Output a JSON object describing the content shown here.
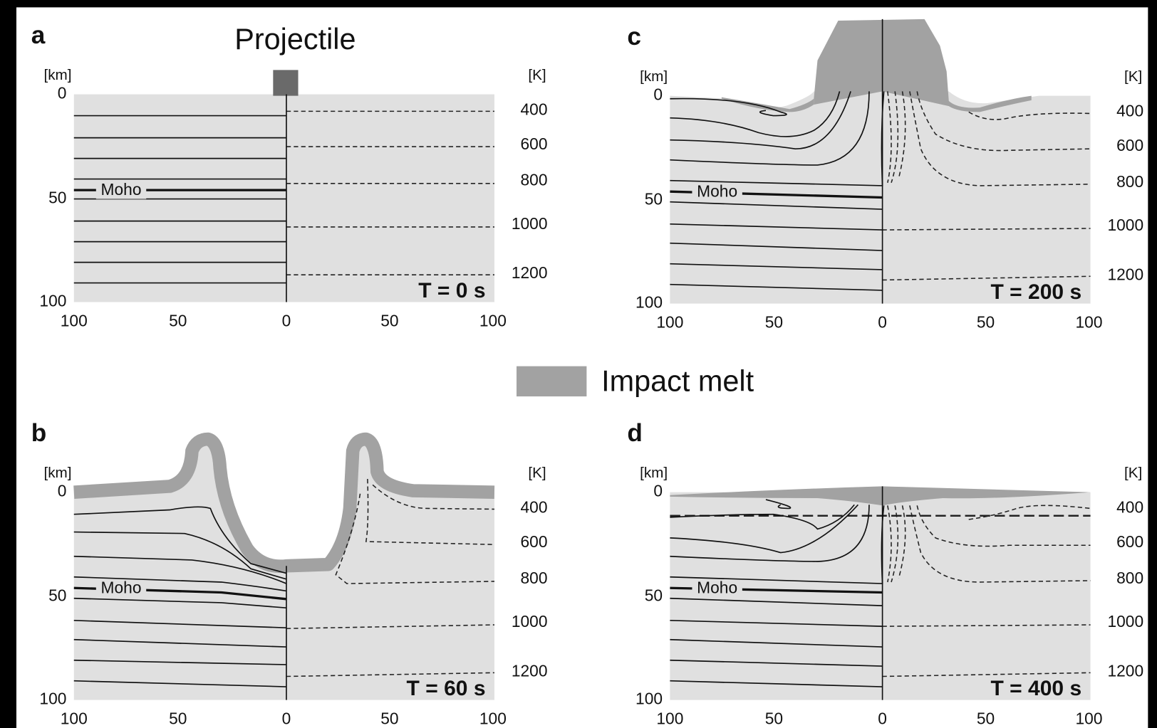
{
  "legend": {
    "label": "Impact melt"
  },
  "projectile": "Projectile",
  "panels": [
    {
      "letter": "a",
      "time": "T = 0 s",
      "depth_unit": "[km]",
      "temp_unit": "[K]",
      "depth_ticks": [
        "0",
        "50",
        "100"
      ],
      "distance_ticks": [
        "100",
        "50",
        "0",
        "50",
        "100"
      ],
      "temperature_ticks": [
        "400",
        "600",
        "800",
        "1000",
        "1200"
      ],
      "moho": "Moho"
    },
    {
      "letter": "b",
      "time": "T = 60 s",
      "depth_unit": "[km]",
      "temp_unit": "[K]",
      "depth_ticks": [
        "0",
        "50",
        "100"
      ],
      "distance_ticks": [
        "100",
        "50",
        "0",
        "50",
        "100"
      ],
      "temperature_ticks": [
        "400",
        "600",
        "800",
        "1000",
        "1200"
      ],
      "moho": "Moho"
    },
    {
      "letter": "c",
      "time": "T = 200 s",
      "depth_unit": "[km]",
      "temp_unit": "[K]",
      "depth_ticks": [
        "0",
        "50",
        "100"
      ],
      "distance_ticks": [
        "100",
        "50",
        "0",
        "50",
        "100"
      ],
      "temperature_ticks": [
        "400",
        "600",
        "800",
        "1000",
        "1200"
      ],
      "moho": "Moho"
    },
    {
      "letter": "d",
      "time": "T = 400 s",
      "depth_unit": "[km]",
      "temp_unit": "[K]",
      "depth_ticks": [
        "0",
        "50",
        "100"
      ],
      "distance_ticks": [
        "100",
        "50",
        "0",
        "50",
        "100"
      ],
      "temperature_ticks": [
        "400",
        "600",
        "800",
        "1000",
        "1200"
      ],
      "moho": "Moho"
    }
  ]
}
